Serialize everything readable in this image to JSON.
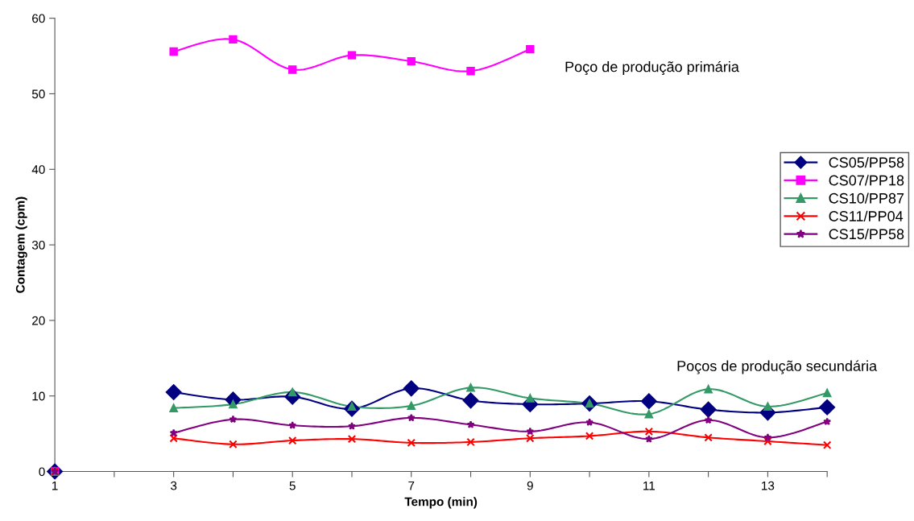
{
  "chart_data": {
    "type": "line",
    "xlabel": "Tempo (min)",
    "ylabel": "Contagem (cpm)",
    "x": [
      1,
      2,
      3,
      4,
      5,
      6,
      7,
      8,
      9,
      10,
      11,
      12,
      13,
      14
    ],
    "xlim": [
      1,
      14
    ],
    "xticks": [
      1,
      {
        "value": 2,
        "label": null
      },
      3,
      {
        "value": 4,
        "label": null
      },
      5,
      {
        "value": 6,
        "label": null
      },
      7,
      {
        "value": 8,
        "label": null
      },
      9,
      {
        "value": 10,
        "label": null
      },
      11,
      {
        "value": 12,
        "label": null
      },
      13,
      {
        "value": 14,
        "label": null
      }
    ],
    "ylim": [
      0,
      60
    ],
    "yticks": [
      0,
      10,
      20,
      30,
      40,
      50,
      60
    ],
    "grid": false,
    "legend": "right",
    "line_style": "solid",
    "series": [
      {
        "name": "CS05/PP58",
        "color": "#000080",
        "marker": "diamond",
        "values": [
          0,
          null,
          10.5,
          9.5,
          9.9,
          8.3,
          11.0,
          9.4,
          8.9,
          9.0,
          9.3,
          8.2,
          7.8,
          8.5
        ]
      },
      {
        "name": "CS07/PP18",
        "color": "#ff00ff",
        "marker": "square",
        "values": [
          0,
          null,
          55.6,
          57.2,
          53.2,
          55.1,
          54.3,
          53.0,
          55.9,
          null,
          null,
          null,
          null,
          null
        ]
      },
      {
        "name": "CS10/PP87",
        "color": "#339966",
        "marker": "triangle",
        "values": [
          0,
          null,
          8.4,
          8.9,
          10.5,
          8.6,
          8.7,
          11.1,
          9.7,
          9.0,
          7.6,
          10.9,
          8.6,
          10.4
        ]
      },
      {
        "name": "CS11/PP04",
        "color": "#ff0000",
        "marker": "cross",
        "values": [
          0,
          null,
          4.4,
          3.6,
          4.1,
          4.3,
          3.8,
          3.9,
          4.4,
          4.7,
          5.3,
          4.5,
          4.0,
          3.5
        ]
      },
      {
        "name": "CS15/PP58",
        "color": "#800080",
        "marker": "star",
        "values": [
          0,
          null,
          5.1,
          6.9,
          6.1,
          6.0,
          7.1,
          6.2,
          5.3,
          6.5,
          4.3,
          6.8,
          4.5,
          6.6
        ]
      }
    ],
    "annotations": [
      "Poço de produção primária",
      "Poços de produção secundária"
    ]
  }
}
